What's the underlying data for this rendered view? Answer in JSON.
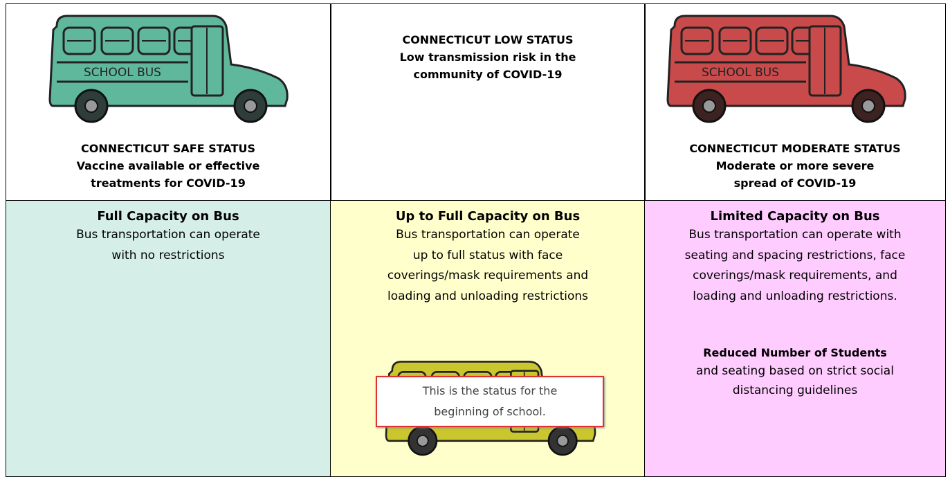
{
  "status_row": [
    {
      "title": "CONNECTICUT SAFE STATUS",
      "lines": [
        "Vaccine available or effective",
        "treatments for COVID-19"
      ]
    },
    {
      "title": "CONNECTICUT LOW STATUS",
      "lines": [
        "Low transmission risk in the",
        "community of COVID-19"
      ]
    },
    {
      "title": "CONNECTICUT MODERATE STATUS",
      "lines": [
        "Moderate or more severe",
        "spread of COVID-19"
      ]
    }
  ],
  "capacity_row": [
    {
      "heading": "Full Capacity on Bus",
      "lines": [
        "Bus transportation can operate",
        "with no restrictions"
      ]
    },
    {
      "heading": "Up to Full Capacity on Bus",
      "lines": [
        "Bus transportation can operate",
        "up to full status with face",
        "coverings/mask requirements and",
        "loading and unloading restrictions"
      ]
    },
    {
      "heading": "Limited Capacity on Bus",
      "lines": [
        "Bus transportation can operate with",
        "seating and spacing restrictions, face",
        "coverings/mask requirements, and",
        "loading and unloading restrictions."
      ],
      "subheading": "Reduced Number of Students",
      "sublines": [
        "and seating based on strict social",
        "distancing guidelines"
      ]
    }
  ],
  "bus_label": "SCHOOL BUS",
  "callout": {
    "lines": [
      "This is the status for the",
      "beginning of school."
    ]
  }
}
